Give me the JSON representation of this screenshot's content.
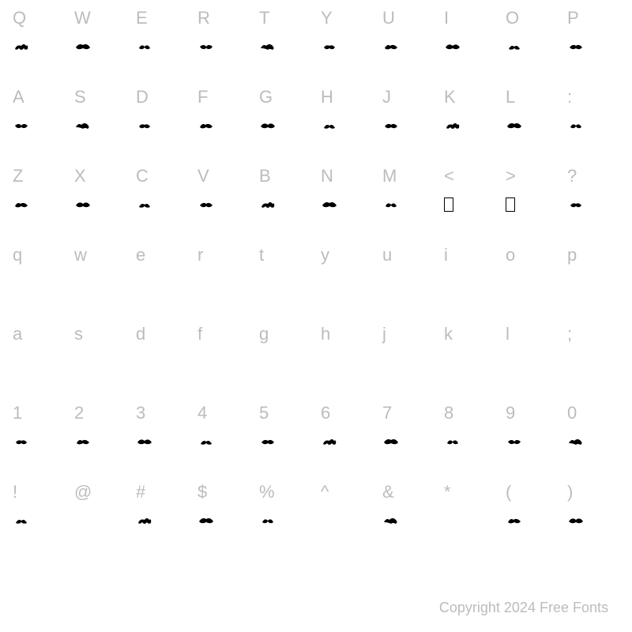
{
  "rows": [
    {
      "keys": [
        "Q",
        "W",
        "E",
        "R",
        "T",
        "Y",
        "U",
        "I",
        "O",
        "P"
      ],
      "hasGlyph": true,
      "glyphType": "orn",
      "specials": {}
    },
    {
      "keys": [
        "A",
        "S",
        "D",
        "F",
        "G",
        "H",
        "J",
        "K",
        "L",
        ":"
      ],
      "hasGlyph": true,
      "glyphType": "orn",
      "specials": {}
    },
    {
      "keys": [
        "Z",
        "X",
        "C",
        "V",
        "B",
        "N",
        "M",
        "<",
        ">",
        "?"
      ],
      "hasGlyph": true,
      "glyphType": "orn",
      "specials": {
        "7": "box",
        "8": "box"
      }
    },
    {
      "keys": [
        "q",
        "w",
        "e",
        "r",
        "t",
        "y",
        "u",
        "i",
        "o",
        "p"
      ],
      "hasGlyph": false,
      "glyphType": "none",
      "specials": {}
    },
    {
      "keys": [
        "a",
        "s",
        "d",
        "f",
        "g",
        "h",
        "j",
        "k",
        "l",
        ";"
      ],
      "hasGlyph": false,
      "glyphType": "none",
      "specials": {}
    },
    {
      "keys": [
        "1",
        "2",
        "3",
        "4",
        "5",
        "6",
        "7",
        "8",
        "9",
        "0"
      ],
      "hasGlyph": true,
      "glyphType": "orn",
      "specials": {}
    },
    {
      "keys": [
        "!",
        "@",
        "#",
        "$",
        "%",
        "^",
        "&",
        "*",
        "(",
        ")"
      ],
      "hasGlyph": true,
      "glyphType": "orn",
      "specials": {
        "1": "blank",
        "5": "blank",
        "7": "blank"
      }
    }
  ],
  "copyright": "Copyright 2024 Free Fonts",
  "colors": {
    "label": "#bcbcbc",
    "glyph": "#000000",
    "background": "#ffffff"
  },
  "ornamentSvgs": [
    "M3 10 Q5 4 11 6 Q14 2 17 6 Q20 4 19 10 Q16 12 14 9 Q11 13 8 9 Q5 12 3 10 Z",
    "M2 8 Q6 2 11 5 Q16 2 20 8 Q17 12 11 9 Q5 12 2 8 Z",
    "M4 9 Q7 3 11 7 Q15 3 18 9 Q14 12 11 8 Q8 12 4 9 Z",
    "M3 7 Q8 3 11 7 Q14 3 19 7 Q16 12 11 9 Q6 12 3 7 Z",
    "M2 9 Q5 3 9 6 Q13 2 17 6 Q20 9 17 11 Q13 9 11 11 Q7 9 2 9 Z",
    "M4 8 Q7 4 11 6 Q15 4 18 8 Q15 12 11 9 Q7 12 4 8 Z",
    "M3 9 Q6 3 10 6 Q14 3 19 8 Q16 12 11 9 Q6 12 3 9 Z",
    "M2 8 Q6 2 11 6 Q16 2 20 8 Q16 12 11 9 Q6 12 2 8 Z",
    "M4 10 Q7 4 11 7 Q15 4 18 10 Q14 12 11 9 Q8 12 4 10 Z",
    "M3 8 Q7 3 11 6 Q15 3 19 8 Q15 12 11 9 Q7 12 3 8 Z"
  ]
}
